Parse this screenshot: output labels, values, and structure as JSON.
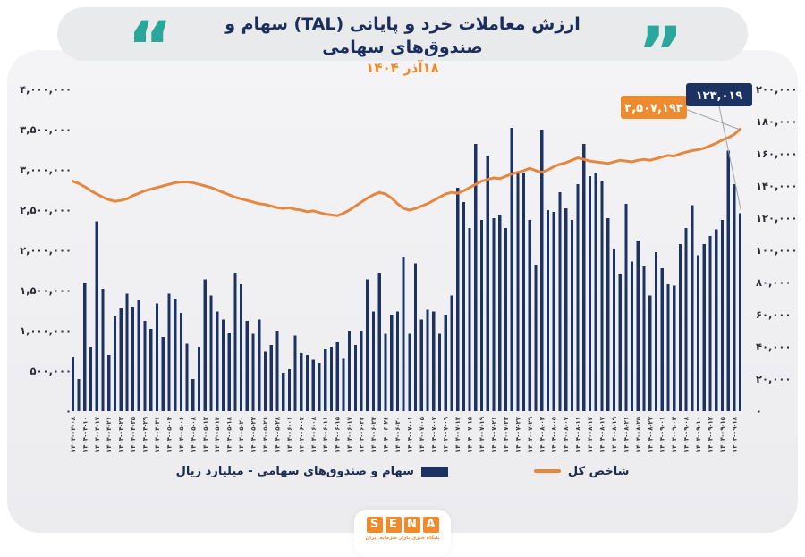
{
  "header": {
    "title": "ارزش معاملات خرد و پایانی (TAL) سهام و صندوق‌های سهامی",
    "date": "۱۸آذر ۱۴۰۴"
  },
  "legend": {
    "bars": "سهام و صندوق‌های سهامی -  میلیارد ریال",
    "line": "شاخص کل"
  },
  "logo": {
    "letters": [
      "S",
      "E",
      "N",
      "A"
    ],
    "subtext": "پایگاه خبری بازار سرمایه ایران"
  },
  "colors": {
    "bar": "#1b3263",
    "line": "#e6873f",
    "annotation_line_box": "#ef8b2f",
    "annotation_bar_box": "#1b3263",
    "teal_quotes": "#2aa79a",
    "title_navy": "#1b2d5c",
    "subtitle_orange": "#f08a2b",
    "tick_text": "#2b2b33",
    "leader": "#a0a0a8"
  },
  "chart_data": {
    "type": "combo",
    "title": "ارزش معاملات خرد و پایانی (TAL) سهام و صندوق‌های سهامی - ۱۸آذر ۱۴۰۴",
    "grid": false,
    "legend_position": "bottom",
    "x_labels": [
      "۱۴۰۴-۰۴-۰۸",
      "۱۴۰۴-۰۴-۱۰",
      "۱۴۰۴-۰۴-۱۷",
      "۱۴۰۴-۰۴-۲۱",
      "۱۴۰۴-۰۴-۲۳",
      "۱۴۰۴-۰۴-۲۵",
      "۱۴۰۴-۰۴-۲۹",
      "۱۴۰۴-۰۴-۳۱",
      "۱۴۰۴-۰۵-۰۴",
      "۱۴۰۴-۰۵-۰۶",
      "۱۴۰۴-۰۵-۰۸",
      "۱۴۰۴-۰۵-۱۲",
      "۱۴۰۴-۰۵-۱۴",
      "۱۴۰۴-۰۵-۱۸",
      "۱۴۰۴-۰۵-۲۰",
      "۱۴۰۴-۰۵-۲۲",
      "۱۴۰۴-۰۵-۲۶",
      "۱۴۰۴-۰۵-۲۸",
      "۱۴۰۴-۰۶-۰۱",
      "۱۴۰۴-۰۶-۰۴",
      "۱۴۰۴-۰۶-۰۸",
      "۱۴۰۴-۰۶-۱۱",
      "۱۴۰۴-۰۶-۱۵",
      "۱۴۰۴-۰۶-۱۷",
      "۱۴۰۴-۰۶-۲۲",
      "۱۴۰۴-۰۶-۲۴",
      "۱۴۰۴-۰۶-۲۶",
      "۱۴۰۴-۰۶-۳۰",
      "۱۴۰۴-۰۷-۰۱",
      "۱۴۰۴-۰۷-۰۵",
      "۱۴۰۴-۰۷-۰۷",
      "۱۴۰۴-۰۷-۰۹",
      "۱۴۰۴-۰۷-۱۲",
      "۱۴۰۴-۰۷-۱۵",
      "۱۴۰۴-۰۷-۱۹",
      "۱۴۰۴-۰۷-۲۱",
      "۱۴۰۴-۰۷-۲۳",
      "۱۴۰۴-۰۷-۲۷",
      "۱۴۰۴-۰۷-۲۹",
      "۱۴۰۴-۰۸-۰۳",
      "۱۴۰۴-۰۸-۰۵",
      "۱۴۰۴-۰۸-۰۷",
      "۱۴۰۴-۰۸-۱۱",
      "۱۴۰۴-۰۸-۱۳",
      "۱۴۰۴-۰۸-۱۷",
      "۱۴۰۴-۰۸-۱۹",
      "۱۴۰۴-۰۸-۲۱",
      "۱۴۰۴-۰۸-۲۵",
      "۱۴۰۴-۰۸-۲۷",
      "۱۴۰۴-۰۹-۰۱",
      "۱۴۰۴-۰۹-۰۳",
      "۱۴۰۴-۰۹-۰۸",
      "۱۴۰۴-۰۹-۱۰",
      "۱۴۰۴-۰۹-۱۲",
      "۱۴۰۴-۰۹-۱۵",
      "۱۴۰۴-۰۹-۱۸"
    ],
    "label_every_n_bars": 2,
    "series": [
      {
        "name": "سهام و صندوق‌های سهامی -  میلیارد ریال",
        "type": "bar",
        "axis": "right",
        "color": "#1b3263",
        "values": [
          34000,
          20000,
          80000,
          40000,
          118000,
          76000,
          35000,
          59000,
          64000,
          73000,
          65000,
          69000,
          56000,
          51000,
          67000,
          46000,
          73000,
          70000,
          61000,
          42000,
          20000,
          40000,
          82000,
          72000,
          62000,
          57000,
          49000,
          86000,
          79000,
          56000,
          48000,
          57000,
          37000,
          41000,
          50000,
          24000,
          26000,
          47000,
          36000,
          35000,
          32000,
          30000,
          39000,
          40000,
          43000,
          33000,
          50000,
          41000,
          50000,
          82000,
          62000,
          86000,
          48000,
          60000,
          62000,
          96000,
          48000,
          92000,
          57000,
          63000,
          62000,
          48000,
          60000,
          72000,
          139000,
          130000,
          114000,
          166000,
          119000,
          159000,
          120000,
          122000,
          114000,
          176000,
          149000,
          148000,
          119000,
          91000,
          175000,
          125000,
          124000,
          136000,
          126000,
          119000,
          141000,
          166000,
          146000,
          148000,
          143000,
          120000,
          101000,
          85000,
          129000,
          93000,
          106000,
          90000,
          72000,
          99000,
          89000,
          79000,
          78000,
          104000,
          114000,
          128000,
          97000,
          104000,
          109000,
          113000,
          119000,
          162000,
          141000,
          123019
        ]
      },
      {
        "name": "شاخص کل",
        "type": "line",
        "axis": "left",
        "color": "#e6873f",
        "values": [
          2860000,
          2830000,
          2790000,
          2740000,
          2700000,
          2660000,
          2630000,
          2610000,
          2620000,
          2640000,
          2680000,
          2710000,
          2740000,
          2760000,
          2780000,
          2800000,
          2820000,
          2840000,
          2850000,
          2850000,
          2840000,
          2820000,
          2800000,
          2780000,
          2750000,
          2720000,
          2690000,
          2660000,
          2640000,
          2620000,
          2600000,
          2580000,
          2570000,
          2550000,
          2530000,
          2520000,
          2530000,
          2510000,
          2500000,
          2480000,
          2490000,
          2470000,
          2450000,
          2440000,
          2430000,
          2460000,
          2500000,
          2550000,
          2600000,
          2650000,
          2690000,
          2720000,
          2700000,
          2650000,
          2580000,
          2520000,
          2500000,
          2520000,
          2550000,
          2580000,
          2620000,
          2660000,
          2700000,
          2720000,
          2710000,
          2740000,
          2780000,
          2820000,
          2860000,
          2880000,
          2900000,
          2890000,
          2920000,
          2950000,
          2970000,
          2990000,
          3020000,
          2990000,
          2970000,
          3000000,
          3040000,
          3070000,
          3090000,
          3120000,
          3150000,
          3130000,
          3110000,
          3100000,
          3090000,
          3080000,
          3100000,
          3120000,
          3110000,
          3100000,
          3120000,
          3130000,
          3120000,
          3140000,
          3160000,
          3180000,
          3170000,
          3200000,
          3220000,
          3240000,
          3250000,
          3270000,
          3300000,
          3330000,
          3370000,
          3400000,
          3440000,
          3507193
        ]
      }
    ],
    "left_axis": {
      "min": 0,
      "max": 4000000,
      "tick_step": 500000,
      "ticks": [
        "۴,۰۰۰,۰۰۰",
        "۳,۵۰۰,۰۰۰",
        "۳,۰۰۰,۰۰۰",
        "۲,۵۰۰,۰۰۰",
        "۲,۰۰۰,۰۰۰",
        "۱,۵۰۰,۰۰۰",
        "۱,۰۰۰,۰۰۰",
        "۵۰۰,۰۰۰",
        "۰"
      ]
    },
    "right_axis": {
      "min": 0,
      "max": 200000,
      "tick_step": 20000,
      "ticks": [
        "۲۰۰,۰۰۰",
        "۱۸۰,۰۰۰",
        "۱۶۰,۰۰۰",
        "۱۴۰,۰۰۰",
        "۱۲۰,۰۰۰",
        "۱۰۰,۰۰۰",
        "۸۰,۰۰۰",
        "۶۰,۰۰۰",
        "۴۰,۰۰۰",
        "۲۰,۰۰۰",
        "۰"
      ]
    },
    "annotations": [
      {
        "label": "۳,۵۰۷,۱۹۳",
        "value": 3507193,
        "series": "شاخص کل",
        "box_color": "#ef8b2f",
        "text_color": "#ffffff"
      },
      {
        "label": "۱۲۳,۰۱۹",
        "value": 123019,
        "series": "سهام و صندوق‌های سهامی",
        "box_color": "#1b3263",
        "text_color": "#ffffff"
      }
    ]
  }
}
